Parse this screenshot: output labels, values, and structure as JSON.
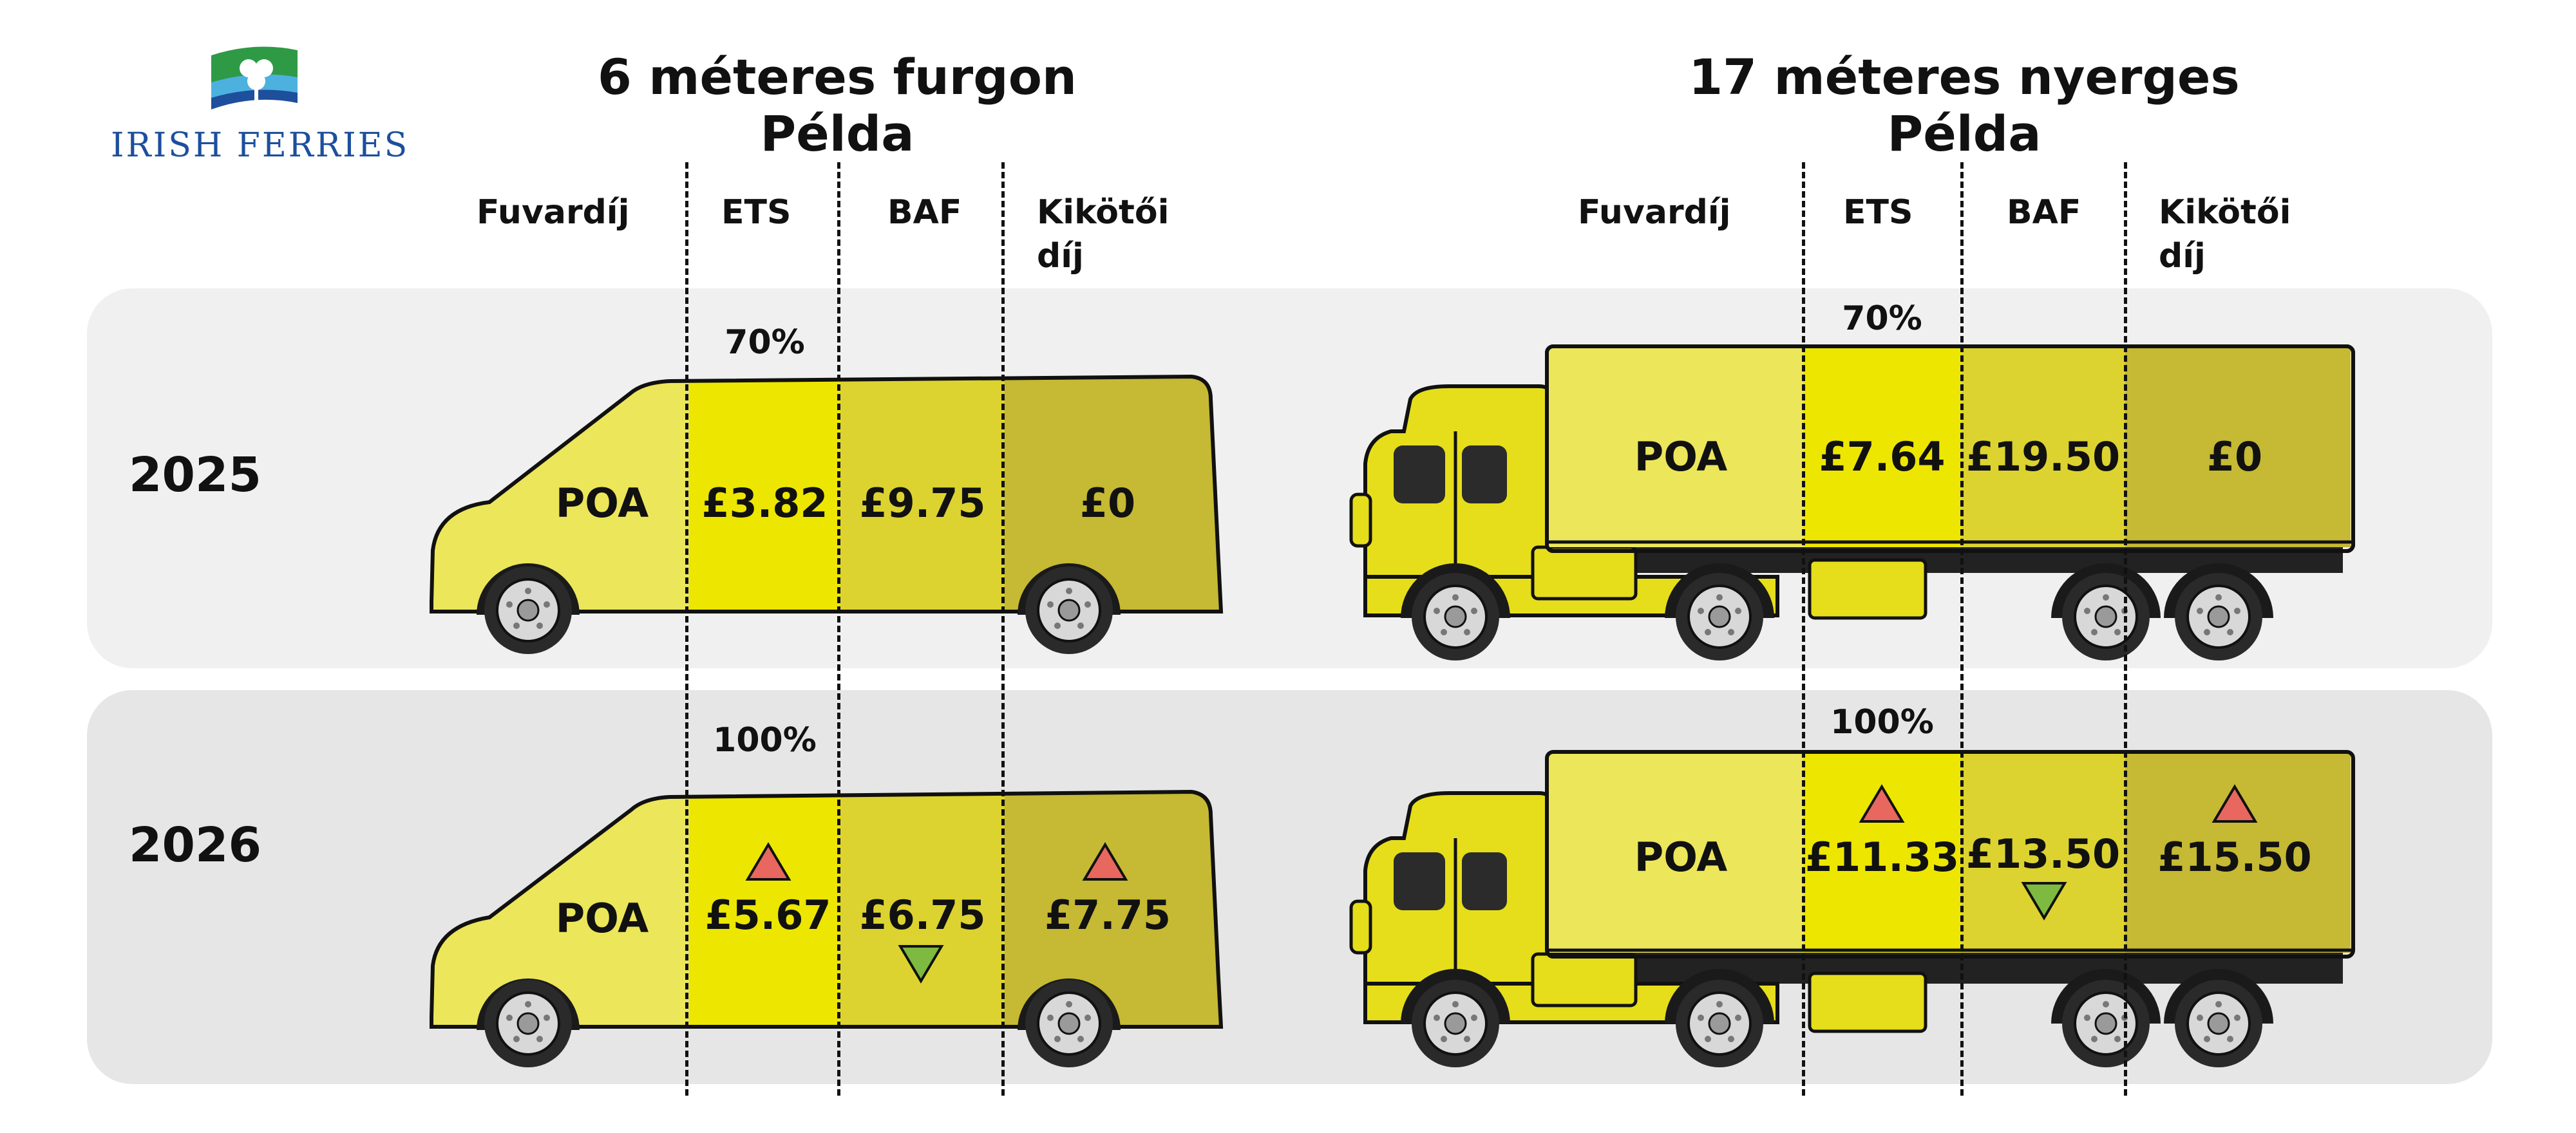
{
  "logo": {
    "text": "IRISH FERRIES",
    "colors": {
      "blue": "#1d4f9c",
      "green": "#2f9a45",
      "sky": "#4db1df"
    },
    "icon": "shamrock-flag-icon"
  },
  "van": {
    "title_line1": "6 méteres furgon",
    "title_line2": "Példa",
    "columns": [
      "Fuvardíj",
      "ETS",
      "BAF",
      "Kikötői",
      "díj"
    ],
    "row_2025": {
      "ets_pct": "70%",
      "freight": "POA",
      "ets": "£3.82",
      "baf": "£9.75",
      "port": "£0"
    },
    "row_2026": {
      "ets_pct": "100%",
      "freight": "POA",
      "ets": "£5.67",
      "baf": "£6.75",
      "port": "£7.75",
      "ets_trend": "up",
      "baf_trend": "down",
      "port_trend": "up"
    }
  },
  "truck": {
    "title_line1": "17 méteres nyerges",
    "title_line2": "Példa",
    "columns": [
      "Fuvardíj",
      "ETS",
      "BAF",
      "Kikötői",
      "díj"
    ],
    "row_2025": {
      "ets_pct": "70%",
      "freight": "POA",
      "ets": "£7.64",
      "baf": "£19.50",
      "port": "£0"
    },
    "row_2026": {
      "ets_pct": "100%",
      "freight": "POA",
      "ets": "£11.33",
      "baf": "£13.50",
      "port": "£15.50",
      "ets_trend": "up",
      "baf_trend": "down",
      "port_trend": "up"
    }
  },
  "years": [
    "2025",
    "2026"
  ],
  "colors": {
    "freight": "#ece65a",
    "ets": "#ede600",
    "baf": "#dcd330",
    "port": "#c6b933",
    "up_arrow": "#e8675f",
    "down_arrow": "#7dba3f",
    "row_2025_bg": "#f0f0f0",
    "row_2026_bg": "#e6e6e6"
  }
}
